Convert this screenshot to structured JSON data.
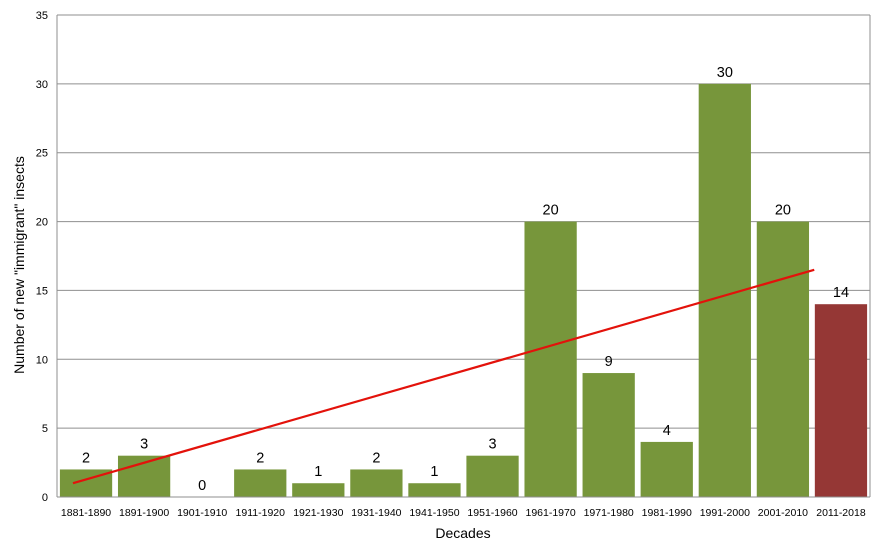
{
  "chart_data": {
    "type": "bar",
    "title": "",
    "xlabel": "Decades",
    "ylabel": "Number of new \"immigrant\" insects",
    "ylim": [
      0,
      35
    ],
    "yticks": [
      0,
      5,
      10,
      15,
      20,
      25,
      30,
      35
    ],
    "grid": "horizontal",
    "categories": [
      "1881-1890",
      "1891-1900",
      "1901-1910",
      "1911-1920",
      "1921-1930",
      "1931-1940",
      "1941-1950",
      "1951-1960",
      "1961-1970",
      "1971-1980",
      "1981-1990",
      "1991-2000",
      "2001-2010",
      "2011-2018"
    ],
    "values": [
      2,
      3,
      0,
      2,
      1,
      2,
      1,
      3,
      20,
      9,
      4,
      30,
      20,
      14
    ],
    "bar_colors": [
      "#77963b",
      "#77963b",
      "#77963b",
      "#77963b",
      "#77963b",
      "#77963b",
      "#77963b",
      "#77963b",
      "#77963b",
      "#77963b",
      "#77963b",
      "#77963b",
      "#77963b",
      "#953735"
    ],
    "trendline": {
      "type": "linear",
      "color": "#e3120b",
      "start_category": "1881-1890",
      "end_category": "2001-2010",
      "start_value": 1.0,
      "end_value": 16.5
    }
  }
}
